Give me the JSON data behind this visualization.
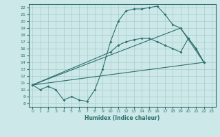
{
  "title": "",
  "xlabel": "Humidex (Indice chaleur)",
  "ylabel": "",
  "bg_color": "#cce8e8",
  "grid_color": "#aacccc",
  "line_color": "#2e6e6e",
  "xlim": [
    -0.5,
    23.5
  ],
  "ylim": [
    7.5,
    22.5
  ],
  "xticks": [
    0,
    1,
    2,
    3,
    4,
    5,
    6,
    7,
    8,
    9,
    10,
    11,
    12,
    13,
    14,
    15,
    16,
    17,
    18,
    19,
    20,
    21,
    22,
    23
  ],
  "yticks": [
    8,
    9,
    10,
    11,
    12,
    13,
    14,
    15,
    16,
    17,
    18,
    19,
    20,
    21,
    22
  ],
  "line1_x": [
    0,
    1,
    2,
    3,
    4,
    5,
    6,
    7,
    8,
    9,
    10,
    11,
    12,
    13,
    14,
    15,
    16,
    17,
    18,
    19,
    20,
    21,
    22
  ],
  "line1_y": [
    10.7,
    10.0,
    10.5,
    10.0,
    8.5,
    9.0,
    8.5,
    8.3,
    10.0,
    13.0,
    17.0,
    20.0,
    21.5,
    21.8,
    21.8,
    22.0,
    22.2,
    21.0,
    19.5,
    19.0,
    17.5,
    16.0,
    14.0
  ],
  "line2_x": [
    0,
    10,
    11,
    12,
    13,
    14,
    15,
    16,
    17,
    18,
    19,
    20,
    21,
    22
  ],
  "line2_y": [
    10.7,
    15.5,
    16.5,
    17.0,
    17.3,
    17.5,
    17.5,
    17.0,
    16.5,
    16.0,
    15.5,
    17.5,
    16.0,
    14.0
  ],
  "line3_x": [
    0,
    22
  ],
  "line3_y": [
    10.7,
    14.0
  ],
  "line4_x": [
    0,
    19,
    22
  ],
  "line4_y": [
    10.7,
    19.0,
    14.0
  ]
}
